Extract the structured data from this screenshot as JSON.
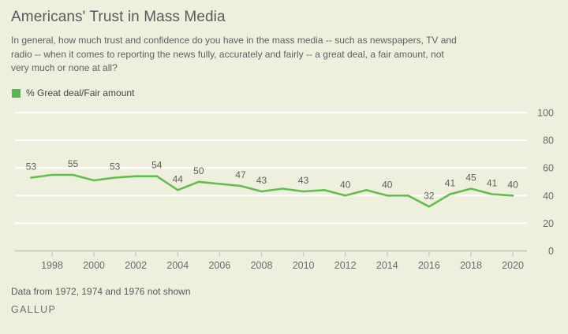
{
  "page": {
    "title": "Americans' Trust in Mass Media",
    "subtitle_lines": [
      "In general, how much trust and confidence do you have in the mass media -- such as newspapers, TV and",
      "radio -- when it comes to reporting the news fully, accurately and fairly -- a great deal, a fair amount, not",
      "very much or none at all?"
    ],
    "footnote": "Data from 1972, 1974 and 1976 not shown",
    "brand": "GALLUP"
  },
  "legend": {
    "label": "% Great deal/Fair amount",
    "swatch_color": "#55b84c"
  },
  "chart_data": {
    "type": "line",
    "title": "Americans' Trust in Mass Media",
    "xlabel": "",
    "ylabel": "",
    "xlim": [
      1996.2,
      2021.6
    ],
    "ylim": [
      0,
      100
    ],
    "grid": "horizontal-white-gridlines",
    "y_axis_side": "right",
    "x_ticks": [
      1998,
      2000,
      2002,
      2004,
      2006,
      2008,
      2010,
      2012,
      2014,
      2016,
      2018,
      2020
    ],
    "y_ticks": [
      0,
      20,
      40,
      60,
      80,
      100
    ],
    "colors": {
      "line": "#63bd4d",
      "gridline": "#ffffff",
      "axis": "#cbcdc5",
      "data_label": "#5d5e60",
      "tick_label": "#6a6b6d"
    },
    "series": [
      {
        "name": "% Great deal/Fair amount",
        "points": [
          {
            "year": 1997,
            "value": 53,
            "labeled": true
          },
          {
            "year": 1998,
            "value": 55,
            "labeled": false
          },
          {
            "year": 1999,
            "value": 55,
            "labeled": true
          },
          {
            "year": 2000,
            "value": 51,
            "labeled": false
          },
          {
            "year": 2001,
            "value": 53,
            "labeled": true
          },
          {
            "year": 2002,
            "value": 54,
            "labeled": false
          },
          {
            "year": 2003,
            "value": 54,
            "labeled": true
          },
          {
            "year": 2004,
            "value": 44,
            "labeled": true
          },
          {
            "year": 2005,
            "value": 50,
            "labeled": true
          },
          {
            "year": 2007,
            "value": 47,
            "labeled": true
          },
          {
            "year": 2008,
            "value": 43,
            "labeled": true
          },
          {
            "year": 2009,
            "value": 45,
            "labeled": false
          },
          {
            "year": 2010,
            "value": 43,
            "labeled": true
          },
          {
            "year": 2011,
            "value": 44,
            "labeled": false
          },
          {
            "year": 2012,
            "value": 40,
            "labeled": true
          },
          {
            "year": 2013,
            "value": 44,
            "labeled": false
          },
          {
            "year": 2014,
            "value": 40,
            "labeled": true
          },
          {
            "year": 2015,
            "value": 40,
            "labeled": false
          },
          {
            "year": 2016,
            "value": 32,
            "labeled": true
          },
          {
            "year": 2017,
            "value": 41,
            "labeled": true
          },
          {
            "year": 2018,
            "value": 45,
            "labeled": true
          },
          {
            "year": 2019,
            "value": 41,
            "labeled": true
          },
          {
            "year": 2020,
            "value": 40,
            "labeled": true
          }
        ]
      }
    ]
  }
}
